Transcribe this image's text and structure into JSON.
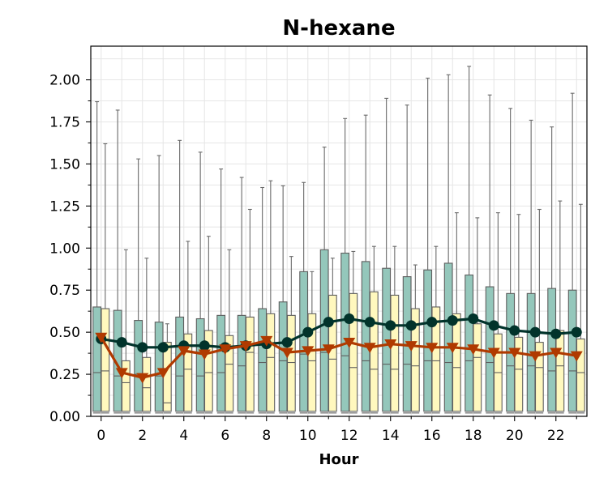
{
  "chart_data": {
    "type": "box",
    "title": "N-hexane",
    "xlabel": "Hour",
    "ylabel": "",
    "xlim": [
      -0.5,
      23.5
    ],
    "ylim": [
      0,
      2.2
    ],
    "grid": true,
    "x_ticks": [
      "0",
      "2",
      "4",
      "6",
      "8",
      "10",
      "12",
      "14",
      "16",
      "18",
      "20",
      "22"
    ],
    "y_ticks": [
      "0.00",
      "0.25",
      "0.50",
      "0.75",
      "1.00",
      "1.25",
      "1.50",
      "1.75",
      "2.00"
    ],
    "hours": [
      0,
      1,
      2,
      3,
      4,
      5,
      6,
      7,
      8,
      9,
      10,
      11,
      12,
      13,
      14,
      15,
      16,
      17,
      18,
      19,
      20,
      21,
      22,
      23
    ],
    "series": [
      {
        "color": "#94c7bb",
        "line_color": "#01332b",
        "marker": "circle",
        "q1": [
          0.03,
          0.03,
          0.03,
          0.03,
          0.03,
          0.03,
          0.03,
          0.03,
          0.03,
          0.03,
          0.03,
          0.03,
          0.03,
          0.03,
          0.03,
          0.03,
          0.03,
          0.03,
          0.03,
          0.03,
          0.03,
          0.03,
          0.03,
          0.03
        ],
        "median": [
          0.26,
          0.24,
          0.25,
          0.24,
          0.24,
          0.24,
          0.26,
          0.3,
          0.32,
          0.33,
          0.37,
          0.38,
          0.36,
          0.33,
          0.31,
          0.31,
          0.33,
          0.32,
          0.33,
          0.32,
          0.3,
          0.3,
          0.27,
          0.27
        ],
        "q3": [
          0.65,
          0.63,
          0.57,
          0.56,
          0.59,
          0.58,
          0.6,
          0.6,
          0.64,
          0.68,
          0.86,
          0.99,
          0.97,
          0.92,
          0.88,
          0.83,
          0.87,
          0.91,
          0.84,
          0.77,
          0.73,
          0.73,
          0.76,
          0.75
        ],
        "whisker_high": [
          1.87,
          1.82,
          1.53,
          1.55,
          1.64,
          1.57,
          1.47,
          1.42,
          1.36,
          1.37,
          1.39,
          1.6,
          1.77,
          1.79,
          1.89,
          1.85,
          2.01,
          2.03,
          2.08,
          1.91,
          1.83,
          1.76,
          1.72,
          1.92
        ],
        "mean": [
          0.46,
          0.44,
          0.41,
          0.41,
          0.42,
          0.42,
          0.41,
          0.42,
          0.43,
          0.44,
          0.5,
          0.56,
          0.58,
          0.56,
          0.54,
          0.54,
          0.56,
          0.57,
          0.58,
          0.54,
          0.51,
          0.5,
          0.49,
          0.5
        ]
      },
      {
        "color": "#fff8be",
        "line_color": "#b03a00",
        "marker": "triangle-down",
        "q1": [
          0.03,
          0.03,
          0.03,
          0.03,
          0.03,
          0.03,
          0.03,
          0.03,
          0.03,
          0.03,
          0.03,
          0.03,
          0.03,
          0.03,
          0.03,
          0.03,
          0.03,
          0.03,
          0.03,
          0.03,
          0.03,
          0.03,
          0.03,
          0.03
        ],
        "median": [
          0.27,
          0.2,
          0.17,
          0.08,
          0.28,
          0.26,
          0.31,
          0.38,
          0.35,
          0.32,
          0.33,
          0.34,
          0.29,
          0.28,
          0.28,
          0.3,
          0.33,
          0.29,
          0.35,
          0.26,
          0.28,
          0.29,
          0.3,
          0.26
        ],
        "q3": [
          0.64,
          0.33,
          0.35,
          0.44,
          0.49,
          0.51,
          0.48,
          0.59,
          0.61,
          0.6,
          0.61,
          0.72,
          0.73,
          0.74,
          0.72,
          0.64,
          0.65,
          0.61,
          0.55,
          0.49,
          0.47,
          0.44,
          0.51,
          0.46
        ],
        "whisker_high": [
          1.62,
          0.99,
          0.94,
          0.55,
          1.04,
          1.07,
          0.99,
          1.23,
          1.4,
          0.95,
          0.86,
          0.94,
          0.98,
          1.01,
          1.01,
          0.9,
          1.01,
          1.21,
          1.18,
          1.21,
          1.2,
          1.23,
          1.28,
          1.26
        ],
        "mean": [
          0.47,
          0.26,
          0.23,
          0.26,
          0.39,
          0.37,
          0.4,
          0.42,
          0.45,
          0.38,
          0.39,
          0.4,
          0.44,
          0.41,
          0.43,
          0.42,
          0.41,
          0.41,
          0.4,
          0.38,
          0.38,
          0.36,
          0.38,
          0.36
        ]
      }
    ]
  }
}
